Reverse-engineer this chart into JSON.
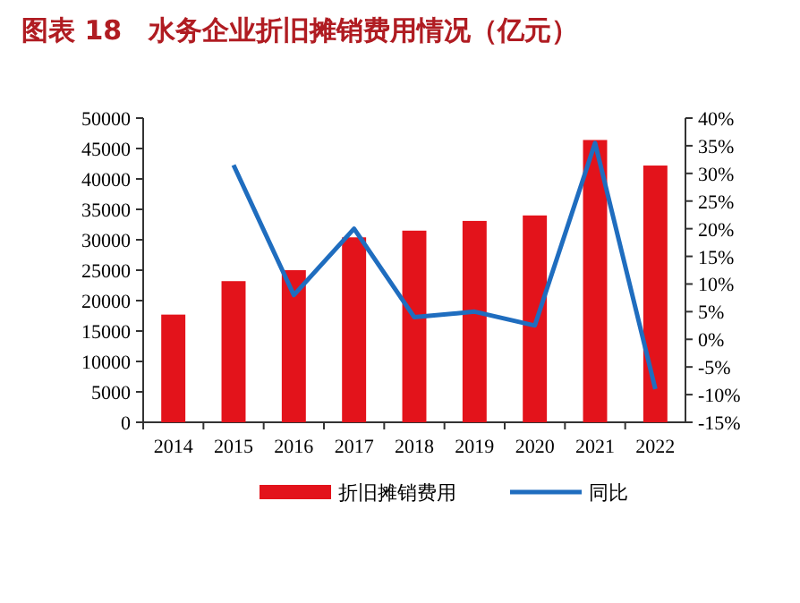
{
  "chart_data": {
    "type": "bar",
    "title": "图表 18　水务企业折旧摊销费用情况（亿元）",
    "categories": [
      "2014",
      "2015",
      "2016",
      "2017",
      "2018",
      "2019",
      "2020",
      "2021",
      "2022"
    ],
    "series": [
      {
        "name": "折旧摊销费用",
        "color": "#e3131b",
        "values": [
          17700,
          23200,
          25000,
          30400,
          31500,
          33100,
          34000,
          46400,
          42200
        ]
      },
      {
        "name": "同比",
        "type": "line",
        "axis": "y2",
        "color": "#1f6dbf",
        "values": [
          null,
          31.5,
          8,
          20,
          4,
          5,
          2.5,
          35.5,
          -9
        ]
      }
    ],
    "ylim": [
      0,
      50000
    ],
    "yticks": [
      0,
      5000,
      10000,
      15000,
      20000,
      25000,
      30000,
      35000,
      40000,
      45000,
      50000
    ],
    "y2lim": [
      -15,
      40
    ],
    "y2ticks": [
      {
        "value": -15,
        "label": "-15%"
      },
      {
        "value": -10,
        "label": "-10%"
      },
      {
        "value": -5,
        "label": "-5%"
      },
      {
        "value": 0,
        "label": "0%"
      },
      {
        "value": 5,
        "label": "5%"
      },
      {
        "value": 10,
        "label": "10%"
      },
      {
        "value": 15,
        "label": "15%"
      },
      {
        "value": 20,
        "label": "20%"
      },
      {
        "value": 25,
        "label": "25%"
      },
      {
        "value": 30,
        "label": "30%"
      },
      {
        "value": 35,
        "label": "35%"
      },
      {
        "value": 40,
        "label": "40%"
      }
    ],
    "legend": "bottom",
    "grid": false,
    "marker": "none"
  }
}
